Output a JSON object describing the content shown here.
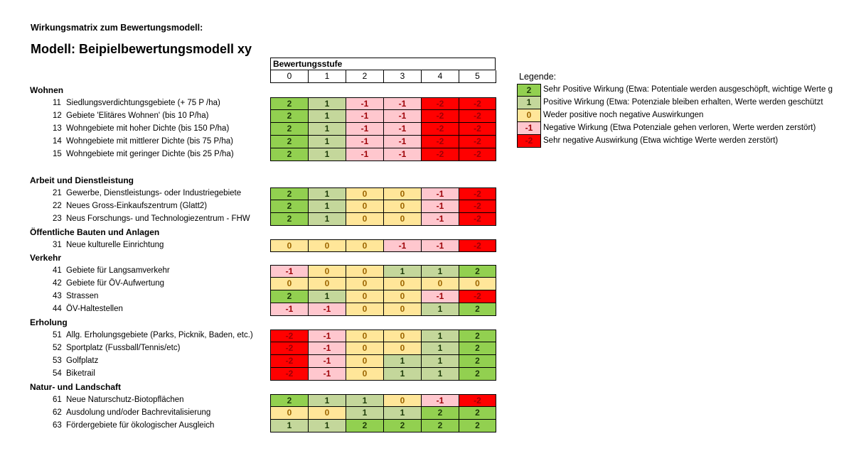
{
  "title": "Wirkungsmatrix zum Bewertungsmodell:",
  "model": "Modell: Beipielbewertungsmodell xy",
  "matrix_header": "Bewertungsstufe",
  "levels": [
    "0",
    "1",
    "2",
    "3",
    "4",
    "5"
  ],
  "colors": {
    "2": {
      "bg": "#92d050",
      "fg": "#1d3b08"
    },
    "1": {
      "bg": "#c4d79b",
      "fg": "#1d3b08"
    },
    "0": {
      "bg": "#ffe699",
      "fg": "#9c6500"
    },
    "-1": {
      "bg": "#ffc7ce",
      "fg": "#9c0006"
    },
    "-2": {
      "bg": "#ff0000",
      "fg": "#9c0006"
    }
  },
  "sections": [
    {
      "name": "Wohnen",
      "rows": [
        {
          "id": "11",
          "label": "Siedlungsverdichtungsgebiete (+ 75 P /ha)",
          "values": [
            "2",
            "1",
            "-1",
            "-1",
            "-2",
            "-2"
          ]
        },
        {
          "id": "12",
          "label": "Gebiete 'Elitäres Wohnen' (bis 10 P/ha)",
          "values": [
            "2",
            "1",
            "-1",
            "-1",
            "-2",
            "-2"
          ]
        },
        {
          "id": "13",
          "label": "Wohngebiete mit hoher Dichte (bis 150 P/ha)",
          "values": [
            "2",
            "1",
            "-1",
            "-1",
            "-2",
            "-2"
          ]
        },
        {
          "id": "14",
          "label": "Wohngebiete mit mittlerer Dichte (bis 75 P/ha)",
          "values": [
            "2",
            "1",
            "-1",
            "-1",
            "-2",
            "-2"
          ]
        },
        {
          "id": "15",
          "label": "Wohngebiete mit geringer Dichte (bis 25 P/ha)",
          "values": [
            "2",
            "1",
            "-1",
            "-1",
            "-2",
            "-2"
          ]
        }
      ]
    },
    {
      "name": "Arbeit und Dienstleistung",
      "rows": [
        {
          "id": "21",
          "label": "Gewerbe, Dienstleistungs- oder Industriegebiete",
          "values": [
            "2",
            "1",
            "0",
            "0",
            "-1",
            "-2"
          ]
        },
        {
          "id": "22",
          "label": "Neues Gross-Einkaufszentrum (Glatt2)",
          "values": [
            "2",
            "1",
            "0",
            "0",
            "-1",
            "-2"
          ]
        },
        {
          "id": "23",
          "label": "Neus Forschungs- und Technologiezentrum - FHW",
          "values": [
            "2",
            "1",
            "0",
            "0",
            "-1",
            "-2"
          ]
        }
      ]
    },
    {
      "name": "Öffentliche Bauten und Anlagen",
      "rows": [
        {
          "id": "31",
          "label": "Neue kulturelle Einrichtung",
          "values": [
            "0",
            "0",
            "0",
            "-1",
            "-1",
            "-2"
          ]
        }
      ]
    },
    {
      "name": "Verkehr",
      "rows": [
        {
          "id": "41",
          "label": "Gebiete für Langsamverkehr",
          "values": [
            "-1",
            "0",
            "0",
            "1",
            "1",
            "2"
          ]
        },
        {
          "id": "42",
          "label": "Gebiete für ÖV-Aufwertung",
          "values": [
            "0",
            "0",
            "0",
            "0",
            "0",
            "0"
          ]
        },
        {
          "id": "43",
          "label": "Strassen",
          "values": [
            "2",
            "1",
            "0",
            "0",
            "-1",
            "-2"
          ]
        },
        {
          "id": "44",
          "label": "ÖV-Haltestellen",
          "values": [
            "-1",
            "-1",
            "0",
            "0",
            "1",
            "2"
          ]
        }
      ]
    },
    {
      "name": "Erholung",
      "rows": [
        {
          "id": "51",
          "label": "Allg. Erholungsgebiete (Parks, Picknik, Baden, etc.)",
          "values": [
            "-2",
            "-1",
            "0",
            "0",
            "1",
            "2"
          ]
        },
        {
          "id": "52",
          "label": "Sportplatz (Fussball/Tennis/etc)",
          "values": [
            "-2",
            "-1",
            "0",
            "0",
            "1",
            "2"
          ]
        },
        {
          "id": "53",
          "label": "Golfplatz",
          "values": [
            "-2",
            "-1",
            "0",
            "1",
            "1",
            "2"
          ]
        },
        {
          "id": "54",
          "label": "Biketrail",
          "values": [
            "-2",
            "-1",
            "0",
            "1",
            "1",
            "2"
          ]
        }
      ]
    },
    {
      "name": "Natur- und Landschaft",
      "rows": [
        {
          "id": "61",
          "label": "Neue Naturschutz-Biotopflächen",
          "values": [
            "2",
            "1",
            "1",
            "0",
            "-1",
            "-2"
          ]
        },
        {
          "id": "62",
          "label": "Ausdolung und/oder Bachrevitalisierung",
          "values": [
            "0",
            "0",
            "1",
            "1",
            "2",
            "2"
          ]
        },
        {
          "id": "63",
          "label": "Fördergebiete für ökologischer Ausgleich",
          "values": [
            "1",
            "1",
            "2",
            "2",
            "2",
            "2"
          ]
        }
      ]
    }
  ],
  "legend": {
    "title": "Legende:",
    "items": [
      {
        "value": "2",
        "text": "Sehr Positive Wirkung (Etwa: Potentiale werden ausgeschöpft, wichtige Werte g"
      },
      {
        "value": "1",
        "text": "Positive Wirkung (Etwa: Potenziale bleiben erhalten, Werte werden geschützt"
      },
      {
        "value": "0",
        "text": "Weder positive noch negative Auswirkungen"
      },
      {
        "value": "-1",
        "text": "Negative Wirkung (Etwa Potenziale gehen verloren, Werte werden zerstört)"
      },
      {
        "value": "-2",
        "text": "Sehr negative Auswirkung (Etwa wichtige Werte werden zerstört)"
      }
    ]
  }
}
